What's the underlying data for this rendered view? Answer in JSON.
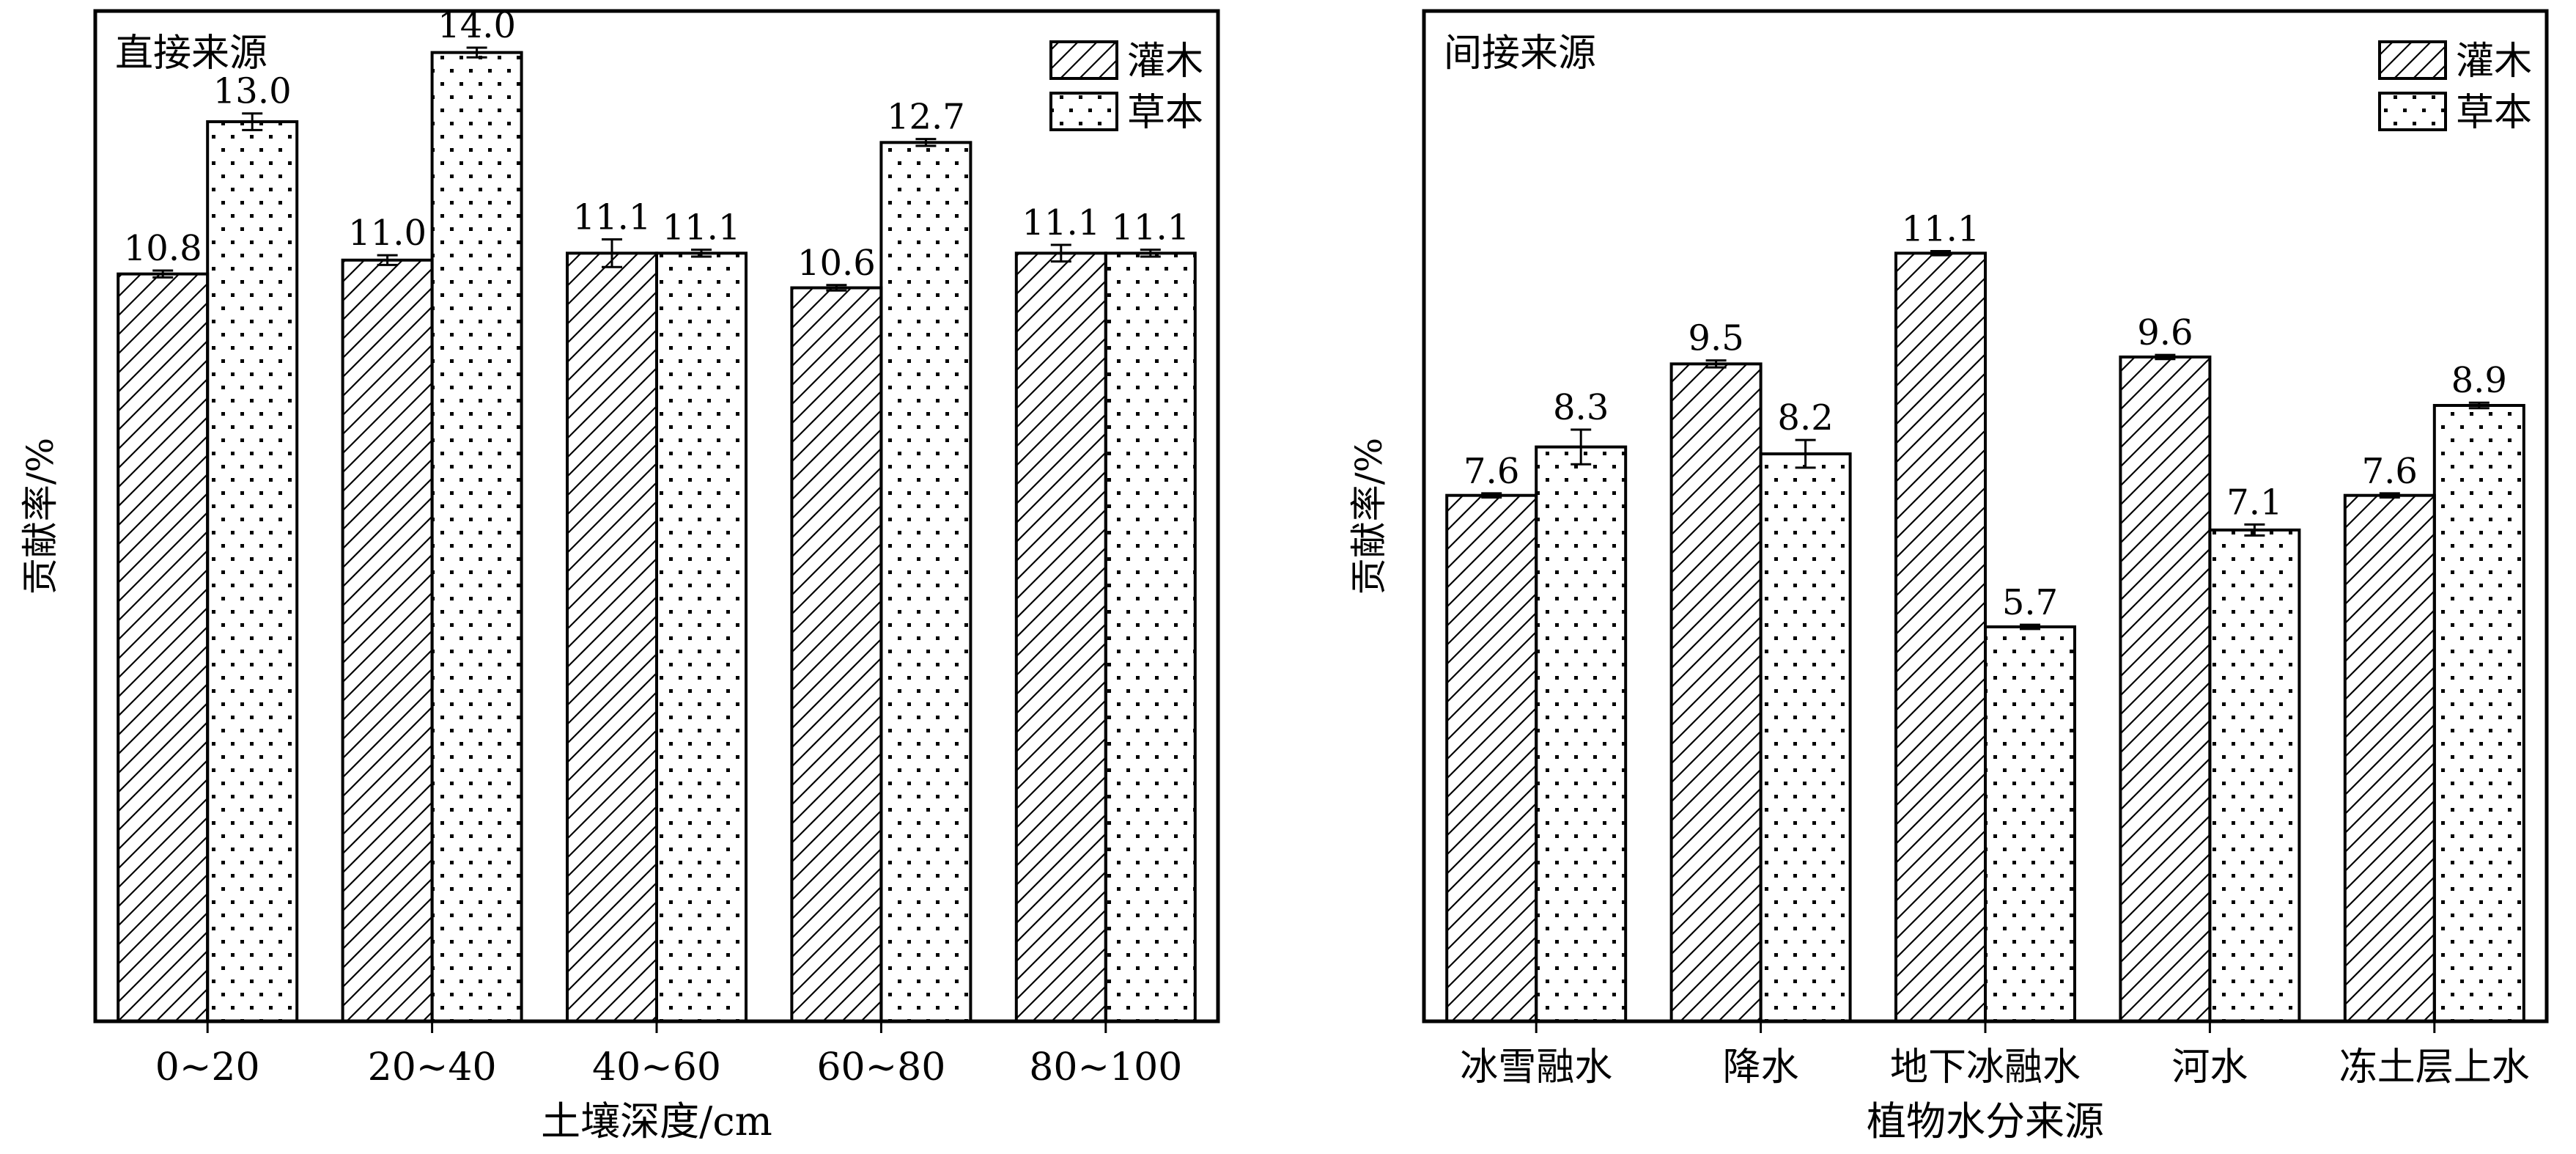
{
  "chart_data": [
    {
      "type": "bar",
      "panel_label": "直接来源",
      "categories": [
        "0~20",
        "20~40",
        "40~60",
        "60~80",
        "80~100"
      ],
      "series": [
        {
          "name": "灌木",
          "values": [
            10.8,
            11.0,
            11.1,
            10.6,
            11.1
          ],
          "errors": [
            0.05,
            0.07,
            0.2,
            0.04,
            0.12
          ],
          "value_labels": [
            "10.8",
            "11.0",
            "11.1",
            "10.6",
            "11.1"
          ]
        },
        {
          "name": "草本",
          "values": [
            13.0,
            14.0,
            11.1,
            12.7,
            11.1
          ],
          "errors": [
            0.12,
            0.07,
            0.05,
            0.05,
            0.05
          ],
          "value_labels": [
            "13.0",
            "14.0",
            "11.1",
            "12.7",
            "11.1"
          ]
        }
      ],
      "xlabel": "土壤深度/cm",
      "ylabel": "贡献率/%",
      "ylim": [
        0,
        14.6
      ],
      "grid": false,
      "legend": "top-right",
      "patterns": [
        "hatch",
        "dots"
      ]
    },
    {
      "type": "bar",
      "panel_label": "间接来源",
      "categories": [
        "冰雪融水",
        "降水",
        "地下冰融水",
        "河水",
        "冻土层上水"
      ],
      "series": [
        {
          "name": "灌木",
          "values": [
            7.6,
            9.5,
            11.1,
            9.6,
            7.6
          ],
          "errors": [
            0.03,
            0.05,
            0.03,
            0.03,
            0.03
          ],
          "value_labels": [
            "7.6",
            "9.5",
            "11.1",
            "9.6",
            "7.6"
          ]
        },
        {
          "name": "草本",
          "values": [
            8.3,
            8.2,
            5.7,
            7.1,
            8.9
          ],
          "errors": [
            0.25,
            0.2,
            0.03,
            0.08,
            0.04
          ],
          "value_labels": [
            "8.3",
            "8.2",
            "5.7",
            "7.1",
            "8.9"
          ]
        }
      ],
      "xlabel": "植物水分来源",
      "ylabel": "贡献率/%",
      "ylim": [
        0,
        14.6
      ],
      "grid": false,
      "legend": "top-right",
      "patterns": [
        "hatch",
        "dots"
      ]
    }
  ]
}
